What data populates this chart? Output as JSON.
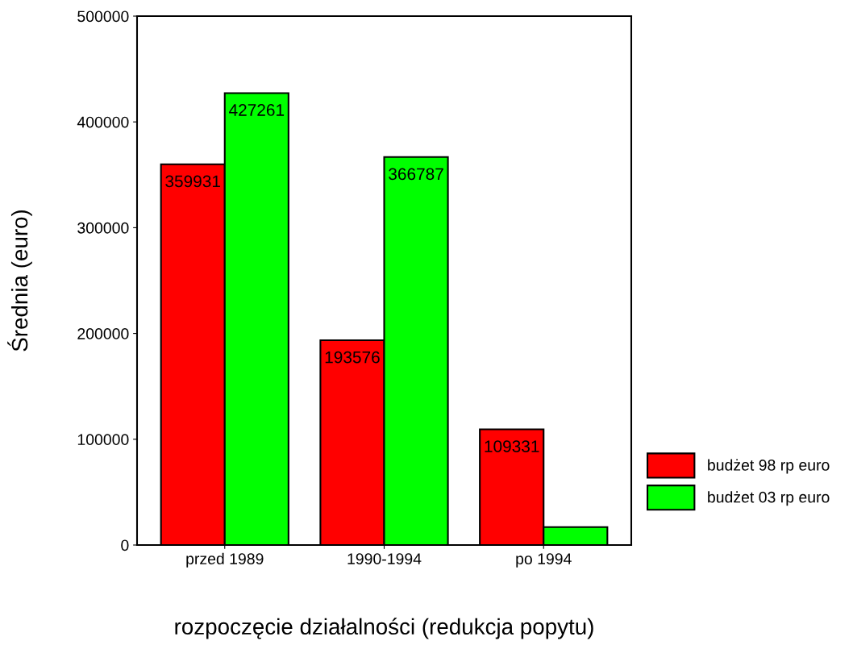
{
  "chart_data": {
    "type": "bar",
    "xlabel": "rozpoczęcie działalności (redukcja popytu)",
    "ylabel": "Średnia (euro)",
    "categories": [
      "przed 1989",
      "1990-1994",
      "po 1994"
    ],
    "series": [
      {
        "name": "budżet 98 rp euro",
        "color": "#ff0000",
        "values": [
          359931,
          193576,
          109331
        ],
        "value_labels": [
          "359931",
          "193576",
          "109331"
        ]
      },
      {
        "name": "budżet 03 rp euro",
        "color": "#00ff00",
        "values": [
          427261,
          366787,
          17000
        ],
        "value_labels": [
          "427261",
          "366787",
          null
        ]
      }
    ],
    "ylim": [
      0,
      500000
    ],
    "yticks": [
      0,
      100000,
      200000,
      300000,
      400000,
      500000
    ],
    "grid": false,
    "legend": "right"
  }
}
